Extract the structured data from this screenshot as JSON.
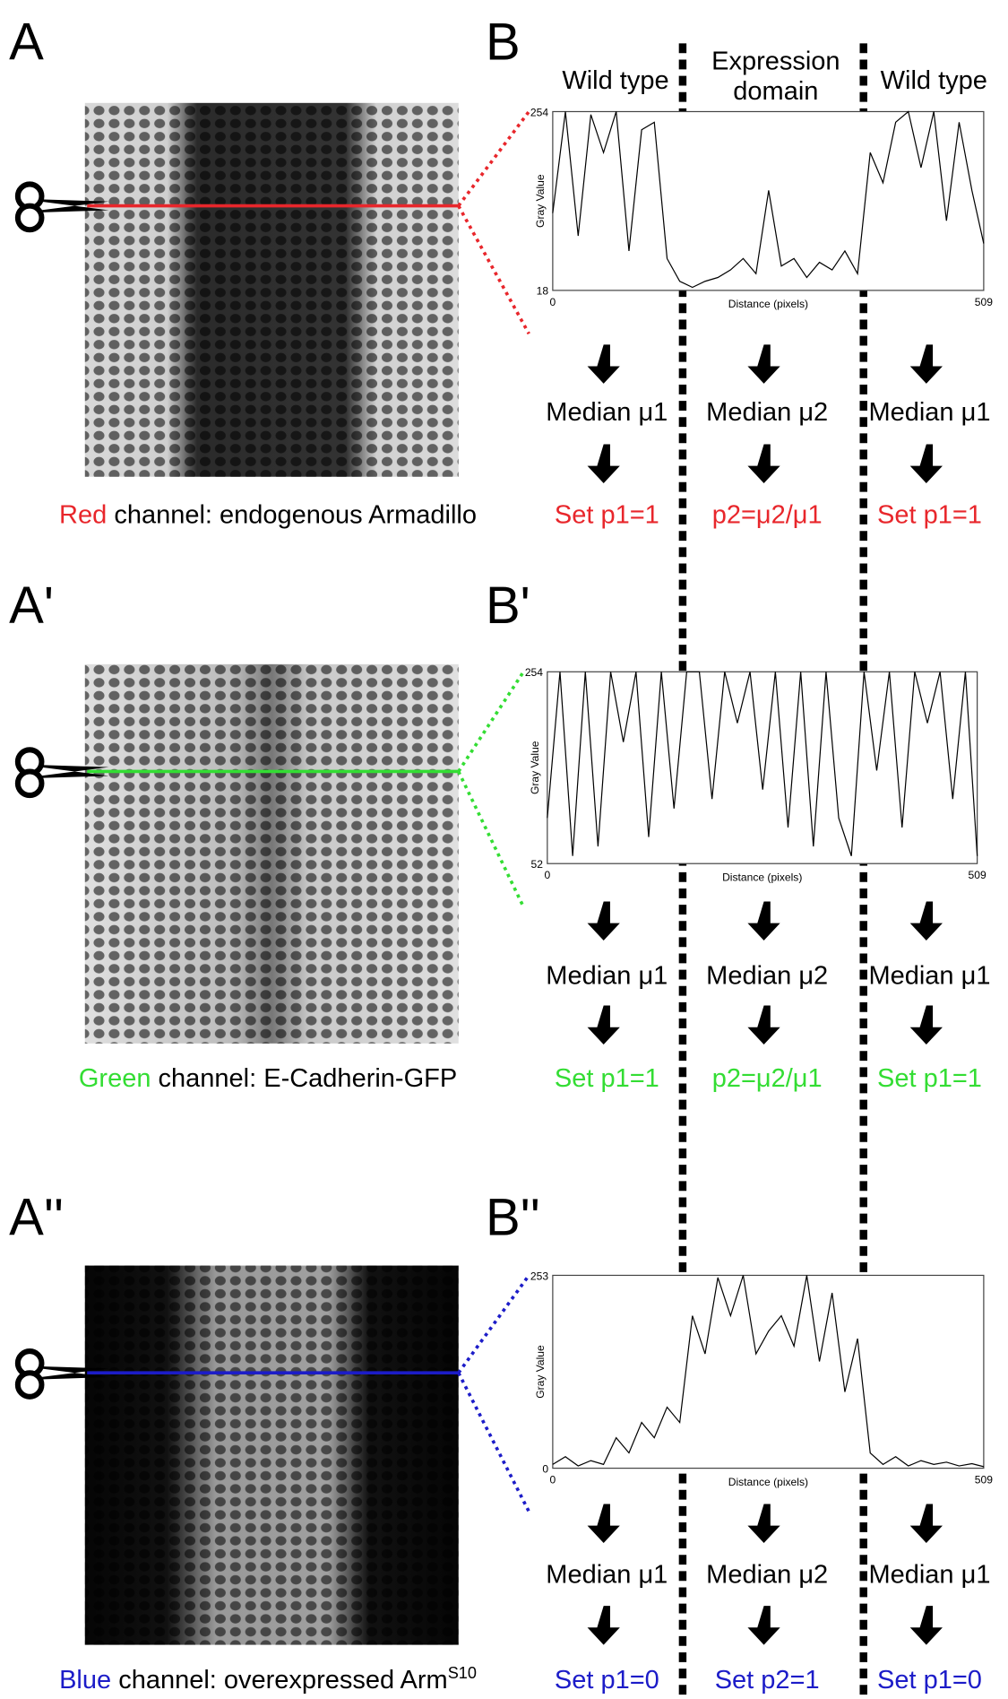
{
  "columns": {
    "left": "Wild type",
    "middle": [
      "Expression",
      "domain"
    ],
    "right": "Wild type"
  },
  "rows": [
    {
      "image_label": "A",
      "plot_label": "B",
      "color": "#e8262b",
      "caption": {
        "colored": "Red",
        "rest": " channel: endogenous Armadillo"
      },
      "plot": {
        "x_label": "Distance (pixels)",
        "y_label": "Gray Value",
        "xlim": [
          0,
          509
        ],
        "ylim": [
          18,
          254
        ],
        "xticks": [
          0,
          509
        ],
        "yticks": [
          18,
          254
        ],
        "x": [
          0,
          15,
          30,
          45,
          60,
          75,
          90,
          105,
          120,
          135,
          150,
          165,
          180,
          195,
          210,
          225,
          240,
          255,
          270,
          285,
          300,
          315,
          330,
          345,
          360,
          375,
          390,
          405,
          420,
          435,
          450,
          465,
          480,
          495,
          509
        ],
        "profile": [
          120,
          254,
          90,
          250,
          200,
          254,
          70,
          230,
          240,
          60,
          30,
          22,
          30,
          35,
          45,
          60,
          40,
          150,
          50,
          60,
          35,
          55,
          45,
          70,
          40,
          200,
          160,
          240,
          254,
          180,
          254,
          110,
          240,
          150,
          80
        ]
      },
      "medians": [
        "Median μ1",
        "Median μ2",
        "Median μ1"
      ],
      "results": [
        "Set p1=1",
        "p2=μ2/μ1",
        "Set p1=1"
      ]
    },
    {
      "image_label": "A'",
      "plot_label": "B'",
      "color": "#33dd33",
      "caption": {
        "colored": "Green",
        "rest": " channel: E-Cadherin-GFP"
      },
      "plot": {
        "x_label": "Distance (pixels)",
        "y_label": "Gray Value",
        "xlim": [
          0,
          509
        ],
        "ylim": [
          52,
          254
        ],
        "xticks": [
          0,
          509
        ],
        "yticks": [
          52,
          254
        ],
        "x": [
          0,
          15,
          30,
          45,
          60,
          75,
          90,
          105,
          120,
          135,
          150,
          165,
          180,
          195,
          210,
          225,
          240,
          255,
          270,
          285,
          300,
          315,
          330,
          345,
          360,
          375,
          390,
          405,
          420,
          435,
          450,
          465,
          480,
          495,
          509
        ],
        "profile": [
          100,
          254,
          60,
          254,
          70,
          254,
          180,
          254,
          80,
          254,
          110,
          254,
          254,
          120,
          254,
          200,
          254,
          130,
          254,
          90,
          254,
          70,
          254,
          100,
          60,
          254,
          150,
          254,
          90,
          254,
          200,
          254,
          120,
          254,
          60
        ]
      },
      "medians": [
        "Median μ1",
        "Median μ2",
        "Median μ1"
      ],
      "results": [
        "Set p1=1",
        "p2=μ2/μ1",
        "Set p1=1"
      ]
    },
    {
      "image_label": "A''",
      "plot_label": "B''",
      "color": "#1c1cc8",
      "caption": {
        "colored": "Blue",
        "rest": " channel: overexpressed Arm",
        "superscript": "S10"
      },
      "plot": {
        "x_label": "Distance (pixels)",
        "y_label": "Gray Value",
        "xlim": [
          0,
          509
        ],
        "ylim": [
          0,
          253
        ],
        "xticks": [
          0,
          509
        ],
        "yticks": [
          0,
          253
        ],
        "x": [
          0,
          15,
          30,
          45,
          60,
          75,
          90,
          105,
          120,
          135,
          150,
          165,
          180,
          195,
          210,
          225,
          240,
          255,
          270,
          285,
          300,
          315,
          330,
          345,
          360,
          375,
          390,
          405,
          420,
          435,
          450,
          465,
          480,
          495,
          509
        ],
        "profile": [
          5,
          15,
          3,
          10,
          5,
          40,
          20,
          60,
          40,
          80,
          60,
          200,
          150,
          250,
          200,
          253,
          150,
          180,
          200,
          160,
          253,
          140,
          230,
          100,
          170,
          20,
          5,
          15,
          3,
          10,
          5,
          8,
          3,
          6,
          2
        ]
      },
      "medians": [
        "Median μ1",
        "Median μ2",
        "Median μ1"
      ],
      "results": [
        "Set p1=0",
        "Set p2=1",
        "Set p1=0"
      ]
    }
  ]
}
